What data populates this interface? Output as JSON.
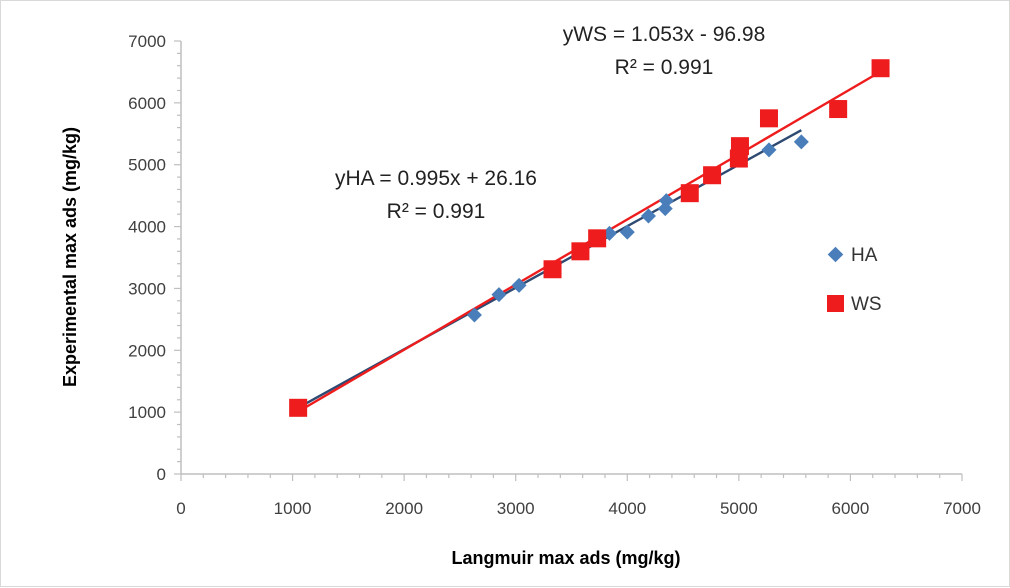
{
  "chart_data": {
    "type": "scatter",
    "xlabel": "Langmuir max ads (mg/kg)",
    "ylabel": "Experimental max ads (mg/kg)",
    "xlim": [
      0,
      7000
    ],
    "ylim": [
      0,
      7000
    ],
    "x_ticks": [
      "0",
      "1000",
      "2000",
      "3000",
      "4000",
      "5000",
      "6000",
      "7000"
    ],
    "y_ticks": [
      "0",
      "1000",
      "2000",
      "3000",
      "4000",
      "5000",
      "6000",
      "7000"
    ],
    "grid": false,
    "legend_position": "right",
    "series": [
      {
        "name": "HA",
        "marker": "diamond",
        "color": "#4a7ebb",
        "x": [
          1060,
          2630,
          2850,
          3030,
          3840,
          4000,
          4190,
          4340,
          4350,
          5270,
          5560
        ],
        "y": [
          1060,
          2570,
          2900,
          3050,
          3890,
          3910,
          4170,
          4290,
          4420,
          5240,
          5370
        ],
        "fit": {
          "slope": 0.995,
          "intercept": 26.16,
          "x_range": [
            1060,
            5560
          ],
          "color": "#2e4a73"
        }
      },
      {
        "name": "WS",
        "marker": "square",
        "color": "#ee1c1c",
        "x": [
          1050,
          3330,
          3580,
          3730,
          4560,
          4760,
          5000,
          5010,
          5270,
          5890,
          6270
        ],
        "y": [
          1070,
          3310,
          3600,
          3810,
          4540,
          4830,
          5100,
          5300,
          5750,
          5900,
          6560
        ],
        "fit": {
          "slope": 1.053,
          "intercept": -96.98,
          "x_range": [
            1050,
            6270
          ],
          "color": "#ee1c1c"
        }
      }
    ],
    "annotations": [
      {
        "series": "WS",
        "equation": "yWS = 1.053x - 96.98",
        "r2": "R² = 0.991"
      },
      {
        "series": "HA",
        "equation": "yHA = 0.995x + 26.16",
        "r2": "R² = 0.991"
      }
    ]
  }
}
